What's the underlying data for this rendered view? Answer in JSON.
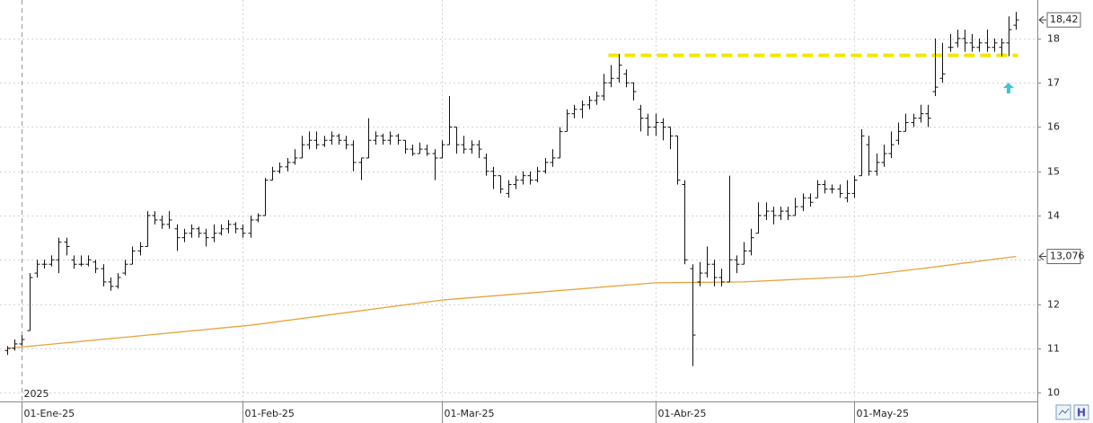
{
  "chart_data": {
    "type": "ohlc",
    "year_label": "2025",
    "categories": [
      null,
      null,
      "01-Ene-25",
      null,
      null,
      null,
      null,
      null,
      null,
      null,
      null,
      null,
      null,
      null,
      null,
      null,
      null,
      null,
      null,
      null,
      null,
      null,
      null,
      null,
      null,
      null,
      null,
      null,
      null,
      null,
      null,
      null,
      "01-Feb-25",
      null,
      null,
      null,
      null,
      null,
      null,
      null,
      null,
      null,
      null,
      null,
      null,
      null,
      null,
      null,
      null,
      null,
      null,
      null,
      null,
      null,
      null,
      null,
      null,
      null,
      null,
      "01-Mar-25",
      null,
      null,
      null,
      null,
      null,
      null,
      null,
      null,
      null,
      null,
      null,
      null,
      null,
      null,
      null,
      null,
      null,
      null,
      null,
      null,
      null,
      null,
      null,
      null,
      null,
      null,
      null,
      null,
      "01-Abr-25",
      null,
      null,
      null,
      null,
      null,
      null,
      null,
      null,
      null,
      null,
      null,
      null,
      null,
      null,
      null,
      null,
      null,
      null,
      null,
      null,
      null,
      null,
      null,
      null,
      null,
      null,
      "01-May-25",
      null,
      null,
      null,
      null,
      null,
      null,
      null,
      null,
      null,
      null,
      null,
      null,
      null,
      null,
      null,
      null,
      null,
      null,
      null,
      null,
      null,
      null
    ],
    "color": "#111111",
    "ohlc": [
      [
        10.95,
        11.05,
        10.85,
        11.0
      ],
      [
        11.0,
        11.2,
        10.95,
        11.1
      ],
      [
        11.1,
        11.3,
        11.05,
        11.2
      ],
      [
        11.4,
        12.7,
        11.4,
        12.6
      ],
      [
        12.7,
        13.0,
        12.6,
        12.9
      ],
      [
        12.9,
        13.0,
        12.8,
        12.9
      ],
      [
        12.9,
        13.1,
        12.85,
        13.0
      ],
      [
        13.0,
        13.5,
        12.7,
        13.4
      ],
      [
        13.4,
        13.5,
        13.1,
        13.3
      ],
      [
        13.0,
        13.1,
        12.8,
        12.9
      ],
      [
        12.9,
        13.1,
        12.85,
        12.9
      ],
      [
        12.9,
        13.1,
        12.85,
        13.0
      ],
      [
        12.95,
        13.0,
        12.7,
        12.8
      ],
      [
        12.8,
        12.9,
        12.4,
        12.5
      ],
      [
        12.5,
        12.6,
        12.3,
        12.4
      ],
      [
        12.4,
        12.7,
        12.35,
        12.6
      ],
      [
        12.7,
        13.0,
        12.65,
        12.9
      ],
      [
        12.9,
        13.3,
        12.9,
        13.2
      ],
      [
        13.2,
        13.4,
        13.1,
        13.3
      ],
      [
        13.3,
        14.1,
        13.3,
        14.0
      ],
      [
        14.0,
        14.1,
        13.8,
        13.9
      ],
      [
        13.9,
        14.0,
        13.7,
        13.8
      ],
      [
        13.8,
        14.1,
        13.7,
        13.9
      ],
      [
        13.7,
        13.8,
        13.2,
        13.5
      ],
      [
        13.5,
        13.7,
        13.4,
        13.6
      ],
      [
        13.6,
        13.8,
        13.5,
        13.7
      ],
      [
        13.7,
        13.75,
        13.5,
        13.6
      ],
      [
        13.6,
        13.7,
        13.3,
        13.5
      ],
      [
        13.5,
        13.8,
        13.4,
        13.6
      ],
      [
        13.6,
        13.8,
        13.55,
        13.7
      ],
      [
        13.7,
        13.9,
        13.6,
        13.8
      ],
      [
        13.8,
        13.85,
        13.6,
        13.7
      ],
      [
        13.7,
        13.8,
        13.5,
        13.6
      ],
      [
        13.6,
        14.0,
        13.5,
        13.9
      ],
      [
        13.9,
        14.05,
        13.85,
        14.0
      ],
      [
        14.0,
        14.85,
        14.0,
        14.8
      ],
      [
        14.8,
        15.1,
        14.8,
        15.0
      ],
      [
        15.0,
        15.2,
        14.95,
        15.1
      ],
      [
        15.1,
        15.3,
        15.0,
        15.2
      ],
      [
        15.2,
        15.5,
        15.15,
        15.3
      ],
      [
        15.3,
        15.8,
        15.3,
        15.6
      ],
      [
        15.6,
        15.9,
        15.5,
        15.7
      ],
      [
        15.7,
        15.9,
        15.5,
        15.6
      ],
      [
        15.6,
        15.8,
        15.55,
        15.7
      ],
      [
        15.7,
        15.9,
        15.6,
        15.8
      ],
      [
        15.8,
        15.85,
        15.6,
        15.7
      ],
      [
        15.7,
        15.8,
        15.5,
        15.6
      ],
      [
        15.6,
        15.7,
        15.0,
        15.2
      ],
      [
        15.2,
        15.3,
        14.8,
        15.3
      ],
      [
        15.3,
        16.2,
        15.3,
        15.7
      ],
      [
        15.7,
        15.9,
        15.6,
        15.8
      ],
      [
        15.8,
        15.85,
        15.6,
        15.7
      ],
      [
        15.7,
        15.9,
        15.6,
        15.8
      ],
      [
        15.8,
        15.85,
        15.6,
        15.7
      ],
      [
        15.7,
        15.7,
        15.4,
        15.5
      ],
      [
        15.5,
        15.6,
        15.35,
        15.4
      ],
      [
        15.4,
        15.65,
        15.4,
        15.5
      ],
      [
        15.5,
        15.6,
        15.35,
        15.4
      ],
      [
        15.4,
        15.5,
        14.8,
        15.3
      ],
      [
        15.3,
        15.7,
        15.3,
        15.6
      ],
      [
        15.6,
        16.7,
        15.6,
        16.0
      ],
      [
        16.0,
        16.0,
        15.4,
        15.6
      ],
      [
        15.6,
        15.8,
        15.4,
        15.5
      ],
      [
        15.5,
        15.7,
        15.4,
        15.6
      ],
      [
        15.6,
        15.7,
        15.3,
        15.5
      ],
      [
        15.3,
        15.4,
        14.9,
        15.0
      ],
      [
        15.0,
        15.1,
        14.6,
        14.9
      ],
      [
        14.9,
        14.9,
        14.5,
        14.6
      ],
      [
        14.5,
        14.8,
        14.4,
        14.7
      ],
      [
        14.7,
        14.9,
        14.6,
        14.8
      ],
      [
        14.8,
        15.0,
        14.7,
        14.9
      ],
      [
        14.9,
        15.0,
        14.7,
        14.8
      ],
      [
        14.8,
        15.1,
        14.75,
        15.0
      ],
      [
        15.0,
        15.3,
        14.95,
        15.2
      ],
      [
        15.2,
        15.5,
        15.1,
        15.3
      ],
      [
        15.3,
        16.0,
        15.3,
        15.9
      ],
      [
        15.9,
        16.4,
        15.9,
        16.3
      ],
      [
        16.3,
        16.5,
        16.2,
        16.4
      ],
      [
        16.4,
        16.6,
        16.2,
        16.5
      ],
      [
        16.5,
        16.7,
        16.4,
        16.6
      ],
      [
        16.6,
        16.8,
        16.5,
        16.7
      ],
      [
        16.7,
        17.2,
        16.6,
        17.0
      ],
      [
        17.0,
        17.4,
        16.9,
        17.1
      ],
      [
        17.1,
        17.65,
        17.0,
        17.4
      ],
      [
        17.2,
        17.3,
        16.9,
        17.0
      ],
      [
        17.0,
        17.0,
        16.6,
        16.8
      ],
      [
        16.4,
        16.5,
        15.9,
        16.2
      ],
      [
        16.2,
        16.3,
        15.8,
        16.0
      ],
      [
        16.0,
        16.3,
        15.8,
        16.1
      ],
      [
        16.1,
        16.2,
        15.7,
        16.0
      ],
      [
        16.0,
        16.0,
        15.5,
        15.8
      ],
      [
        15.8,
        15.8,
        14.7,
        14.8
      ],
      [
        14.7,
        14.8,
        12.9,
        13.0
      ],
      [
        12.8,
        12.9,
        10.6,
        11.3
      ],
      [
        12.5,
        12.95,
        12.4,
        12.7
      ],
      [
        12.7,
        13.3,
        12.6,
        12.9
      ],
      [
        12.9,
        13.0,
        12.4,
        12.6
      ],
      [
        12.6,
        12.8,
        12.4,
        12.5
      ],
      [
        12.5,
        14.9,
        12.5,
        13.0
      ],
      [
        13.0,
        13.1,
        12.7,
        12.9
      ],
      [
        12.9,
        13.4,
        12.9,
        13.2
      ],
      [
        13.2,
        13.7,
        13.1,
        13.5
      ],
      [
        13.6,
        14.3,
        13.6,
        14.0
      ],
      [
        14.0,
        14.3,
        13.9,
        14.1
      ],
      [
        14.1,
        14.2,
        13.8,
        14.0
      ],
      [
        14.0,
        14.2,
        13.9,
        14.1
      ],
      [
        14.1,
        14.2,
        13.9,
        14.0
      ],
      [
        14.0,
        14.4,
        14.0,
        14.2
      ],
      [
        14.2,
        14.5,
        14.1,
        14.4
      ],
      [
        14.4,
        14.5,
        14.2,
        14.3
      ],
      [
        14.4,
        14.8,
        14.4,
        14.7
      ],
      [
        14.7,
        14.8,
        14.5,
        14.6
      ],
      [
        14.6,
        14.7,
        14.5,
        14.6
      ],
      [
        14.6,
        14.7,
        14.4,
        14.5
      ],
      [
        14.4,
        14.8,
        14.3,
        14.5
      ],
      [
        14.5,
        14.9,
        14.4,
        14.8
      ],
      [
        14.9,
        15.95,
        14.9,
        15.8
      ],
      [
        15.6,
        15.8,
        14.9,
        15.0
      ],
      [
        15.0,
        15.4,
        14.9,
        15.2
      ],
      [
        15.2,
        15.6,
        15.1,
        15.4
      ],
      [
        15.4,
        15.9,
        15.3,
        15.6
      ],
      [
        15.7,
        16.1,
        15.6,
        15.9
      ],
      [
        15.9,
        16.3,
        15.9,
        16.1
      ],
      [
        16.1,
        16.3,
        16.0,
        16.2
      ],
      [
        16.2,
        16.5,
        16.1,
        16.3
      ],
      [
        16.3,
        16.5,
        16.0,
        16.2
      ],
      [
        16.8,
        18.0,
        16.7,
        16.9
      ],
      [
        17.1,
        17.9,
        17.0,
        17.2
      ],
      [
        17.8,
        18.1,
        17.7,
        17.8
      ],
      [
        17.9,
        18.2,
        17.8,
        18.0
      ],
      [
        18.0,
        18.2,
        17.7,
        17.9
      ],
      [
        17.9,
        18.1,
        17.7,
        17.8
      ],
      [
        17.8,
        18.0,
        17.7,
        17.9
      ],
      [
        17.9,
        18.2,
        17.7,
        17.8
      ],
      [
        17.8,
        18.0,
        17.7,
        17.9
      ],
      [
        17.8,
        18.0,
        17.6,
        17.9
      ],
      [
        17.9,
        18.5,
        17.6,
        18.2
      ],
      [
        18.3,
        18.6,
        18.2,
        18.42
      ]
    ],
    "ma": {
      "color": "#e8a33c",
      "index": [
        0,
        16,
        33,
        59,
        88,
        100,
        115,
        125,
        137
      ],
      "values": [
        11.0,
        11.25,
        11.52,
        12.09,
        12.48,
        12.5,
        12.62,
        12.82,
        13.076
      ]
    },
    "resistance": {
      "value": 17.62,
      "color": "#f2e600",
      "start_category": 82,
      "end_category": 137
    },
    "last_price": {
      "value": 18.42,
      "label": "18,42"
    },
    "ma_last": {
      "value": 13.076,
      "label": "13,076"
    },
    "ylim": [
      9.8,
      18.87
    ],
    "yticks": [
      10,
      11,
      12,
      13,
      14,
      15,
      16,
      17,
      18
    ],
    "grid": true
  }
}
